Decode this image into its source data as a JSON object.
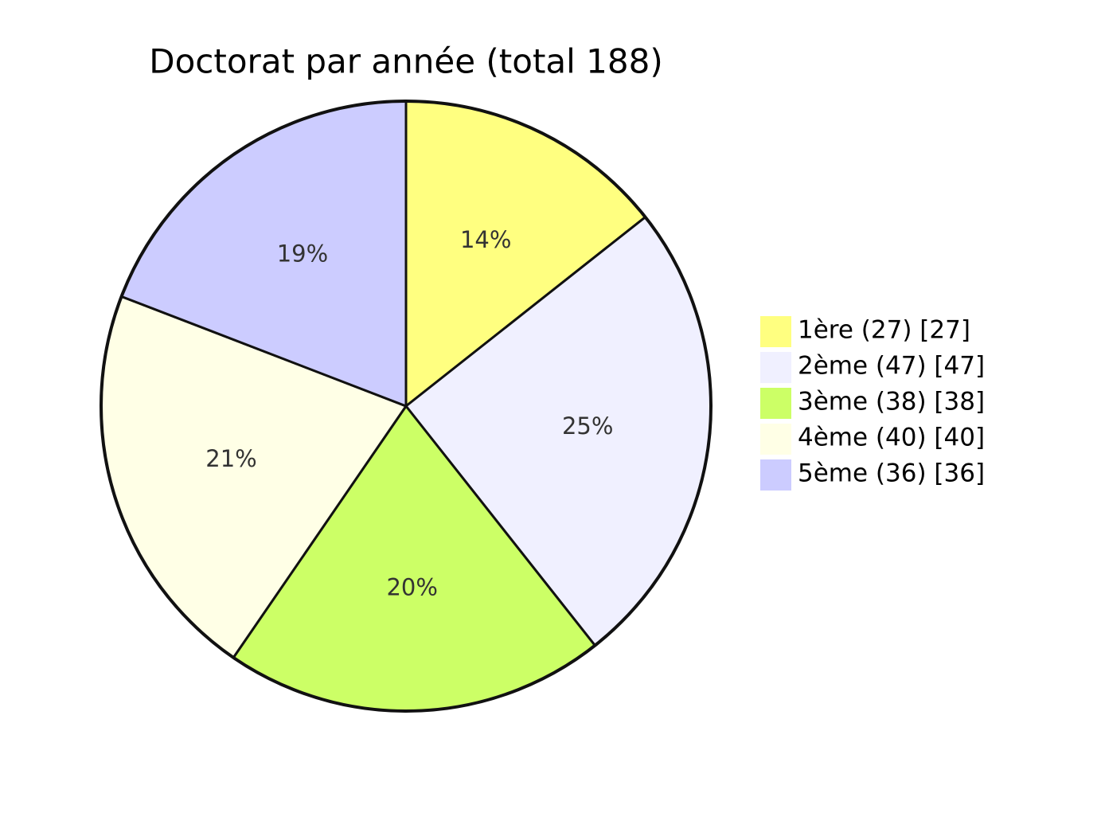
{
  "chart_data": {
    "type": "pie",
    "title": "Doctorat par année (total 188)",
    "categories": [
      "1ère (27) [27]",
      "2ème (47) [47]",
      "3ème (38) [38]",
      "4ème (40) [40]",
      "5ème (36) [36]"
    ],
    "values": [
      27,
      47,
      38,
      40,
      36
    ],
    "value_labels": [
      "14%",
      "25%",
      "20%",
      "21%",
      "19%"
    ],
    "colors": [
      "#ffff80",
      "#f0f0ff",
      "#ccff66",
      "#ffffe6",
      "#ccccff"
    ]
  }
}
